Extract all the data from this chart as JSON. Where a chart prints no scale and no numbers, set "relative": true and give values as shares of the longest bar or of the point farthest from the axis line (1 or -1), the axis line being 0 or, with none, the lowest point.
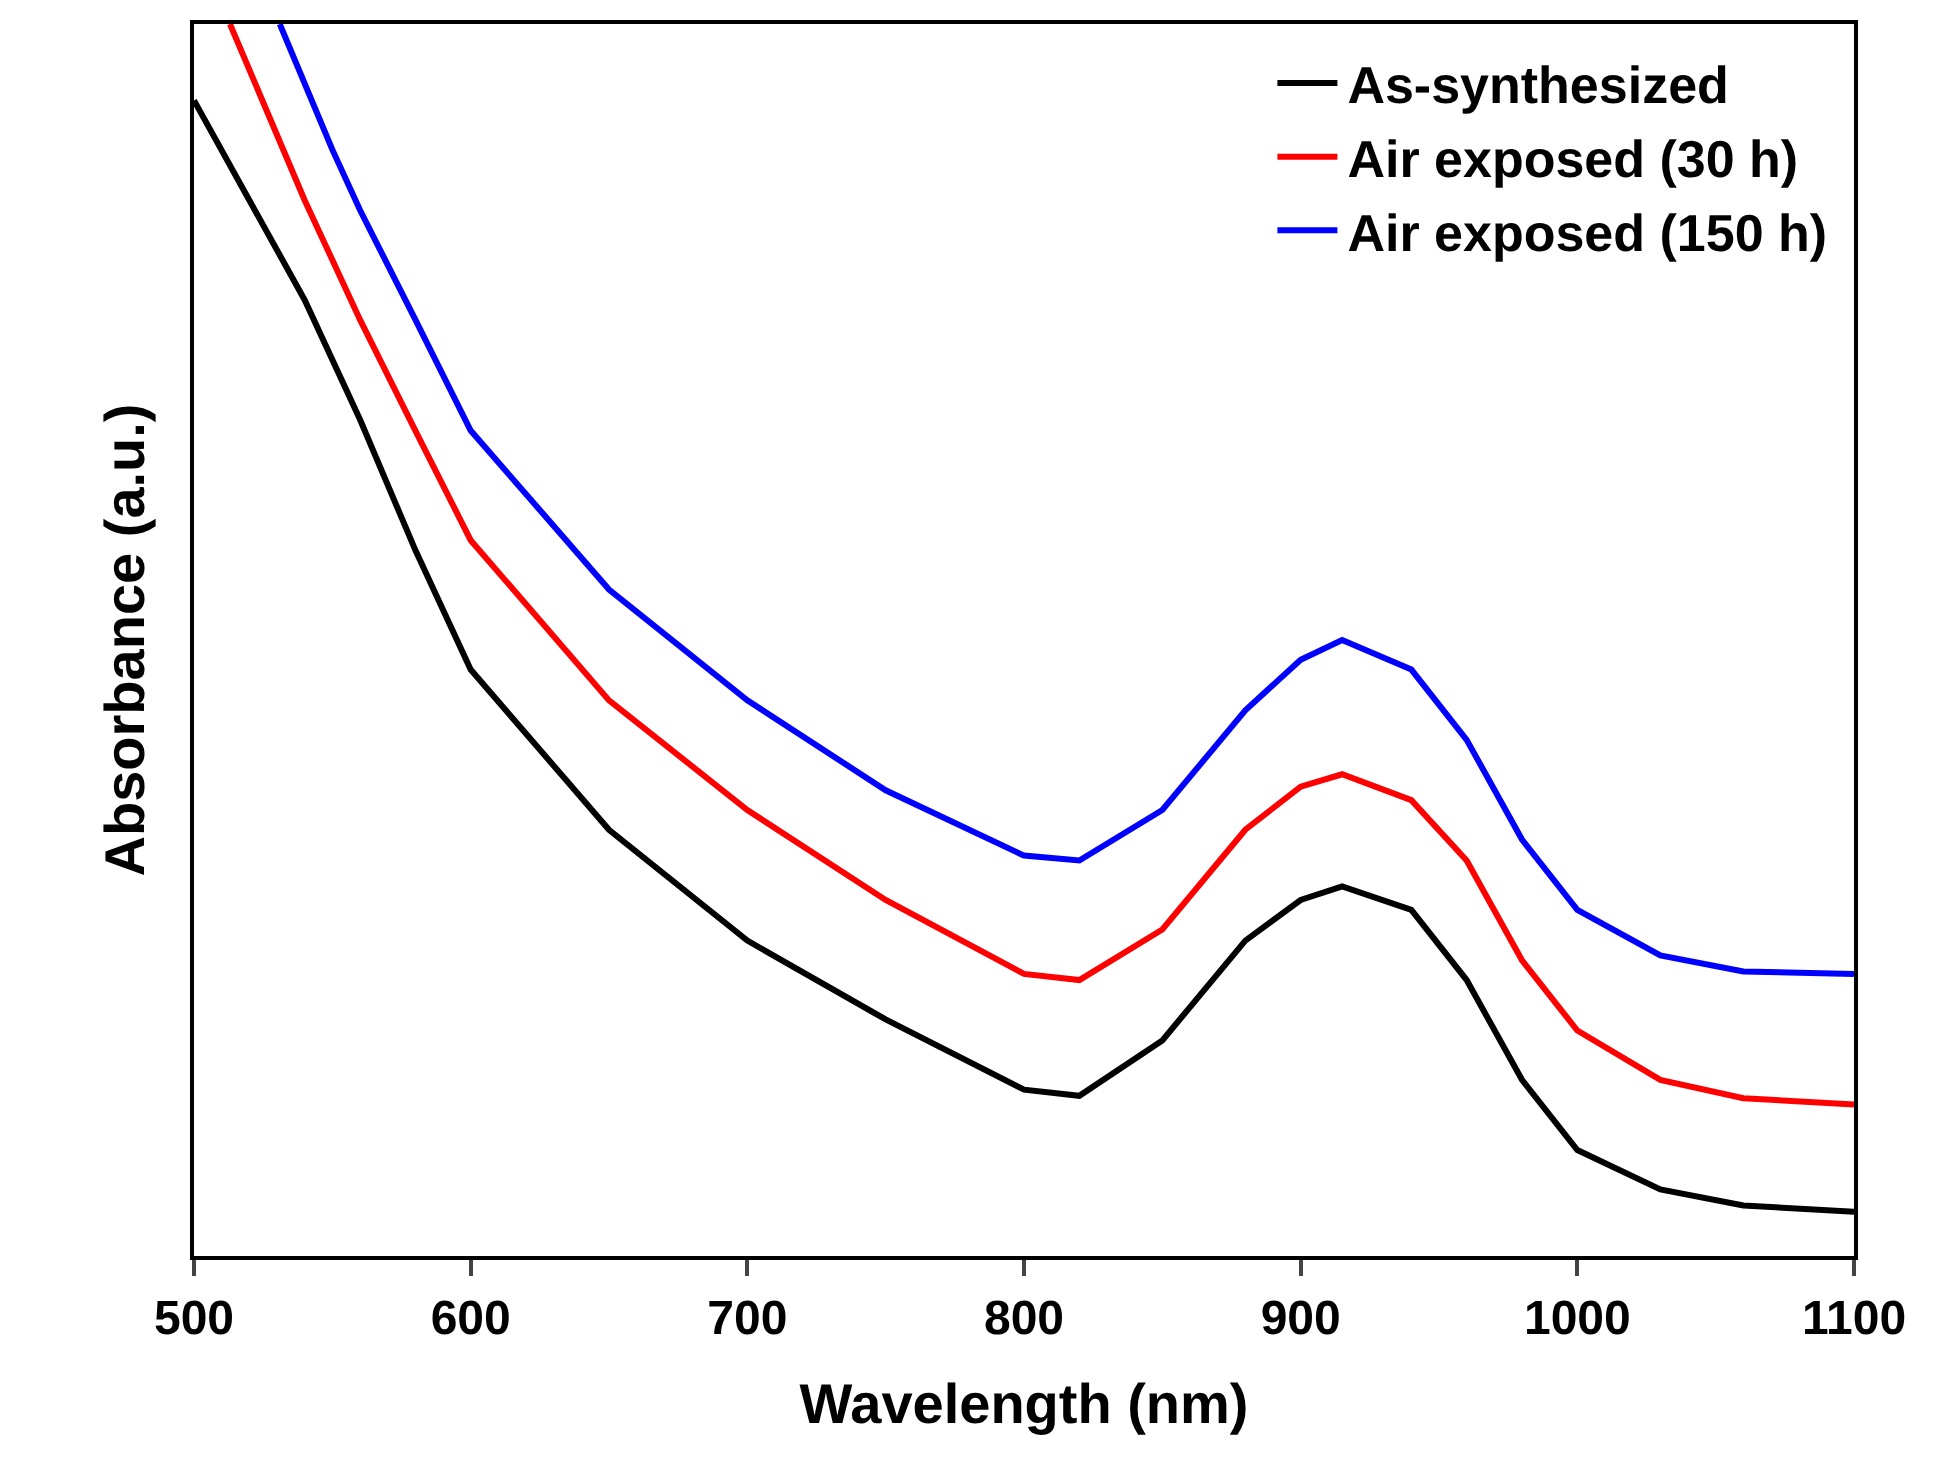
{
  "chart_data": {
    "type": "line",
    "xlabel": "Wavelength (nm)",
    "ylabel": "Absorbance (a.u.)",
    "relative": true,
    "xlim": [
      500,
      1100
    ],
    "xticks": [
      500,
      600,
      700,
      800,
      900,
      1000,
      1100
    ],
    "legend": "top right",
    "grid": false,
    "line_style": "solid",
    "series": [
      {
        "name": "As-synthesized",
        "color": "#000000",
        "x": [
          500,
          520,
          540,
          560,
          580,
          600,
          650,
          700,
          750,
          800,
          820,
          850,
          880,
          900,
          915,
          940,
          960,
          980,
          1000,
          1030,
          1060,
          1100
        ],
        "values": [
          0.938,
          0.857,
          0.776,
          0.679,
          0.573,
          0.476,
          0.346,
          0.256,
          0.192,
          0.135,
          0.13,
          0.175,
          0.256,
          0.289,
          0.3,
          0.281,
          0.224,
          0.143,
          0.086,
          0.054,
          0.041,
          0.036
        ]
      },
      {
        "name": "Air exposed (30 h)",
        "color": "#ff0000",
        "x": [
          513,
          540,
          560,
          580,
          600,
          650,
          700,
          750,
          800,
          820,
          850,
          880,
          900,
          915,
          940,
          960,
          980,
          1000,
          1030,
          1060,
          1100
        ],
        "values": [
          1.0,
          0.857,
          0.76,
          0.67,
          0.581,
          0.451,
          0.362,
          0.289,
          0.229,
          0.224,
          0.265,
          0.346,
          0.381,
          0.391,
          0.37,
          0.321,
          0.24,
          0.183,
          0.143,
          0.128,
          0.123
        ]
      },
      {
        "name": "Air exposed (150 h)",
        "color": "#0000ff",
        "x": [
          531,
          550,
          560,
          580,
          600,
          650,
          700,
          750,
          800,
          820,
          850,
          880,
          900,
          915,
          940,
          960,
          980,
          1000,
          1030,
          1060,
          1100
        ],
        "values": [
          1.0,
          0.898,
          0.849,
          0.76,
          0.67,
          0.541,
          0.451,
          0.378,
          0.325,
          0.321,
          0.362,
          0.443,
          0.484,
          0.5,
          0.476,
          0.419,
          0.338,
          0.281,
          0.244,
          0.231,
          0.229
        ]
      }
    ]
  }
}
